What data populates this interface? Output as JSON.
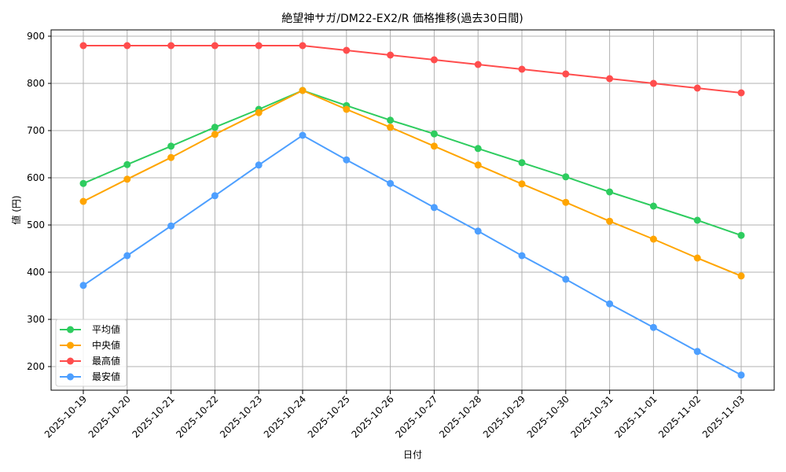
{
  "chart_data": {
    "type": "line",
    "title": "絶望神サガ/DM22-EX2/R 価格推移(過去30日間)",
    "xlabel": "日付",
    "ylabel": "値 (円)",
    "ylim": [
      145,
      915
    ],
    "yticks": [
      200,
      300,
      400,
      500,
      600,
      700,
      800,
      900
    ],
    "grid": true,
    "legend_position": "lower left",
    "categories": [
      "2025-10-19",
      "2025-10-20",
      "2025-10-21",
      "2025-10-22",
      "2025-10-23",
      "2025-10-24",
      "2025-10-25",
      "2025-10-26",
      "2025-10-27",
      "2025-10-28",
      "2025-10-29",
      "2025-10-30",
      "2025-10-31",
      "2025-11-01",
      "2025-11-02",
      "2025-11-03"
    ],
    "series": [
      {
        "name": "平均値",
        "color": "#2ecc5f",
        "values": [
          588,
          628,
          667,
          707,
          745,
          785,
          753,
          722,
          693,
          662,
          632,
          602,
          570,
          540,
          510,
          478
        ]
      },
      {
        "name": "中央値",
        "color": "#ffa500",
        "values": [
          550,
          597,
          643,
          692,
          738,
          785,
          745,
          707,
          667,
          627,
          587,
          548,
          508,
          470,
          430,
          392
        ]
      },
      {
        "name": "最高値",
        "color": "#ff4d4d",
        "values": [
          880,
          880,
          880,
          880,
          880,
          880,
          870,
          860,
          850,
          840,
          830,
          820,
          810,
          800,
          790,
          780
        ]
      },
      {
        "name": "最安値",
        "color": "#4d9fff",
        "values": [
          372,
          435,
          498,
          562,
          627,
          690,
          638,
          588,
          537,
          487,
          435,
          385,
          333,
          283,
          232,
          182
        ]
      }
    ]
  }
}
